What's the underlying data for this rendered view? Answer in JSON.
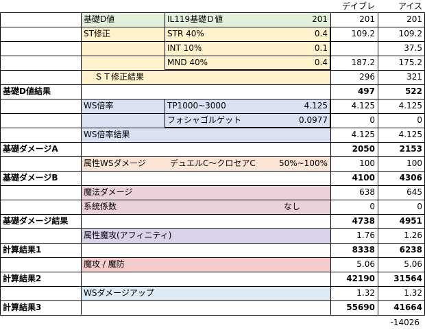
{
  "colors": {
    "green": "#e2efda",
    "yellow": "#fff2cc",
    "blue": "#d9e1f2",
    "orange": "#fce4d6",
    "pink": "#ead1dc",
    "purple": "#d9d2e9",
    "red": "#f4cccc",
    "lightblue": "#ddebf7",
    "border": "#000000",
    "gridline": "#c6c6c6"
  },
  "header": {
    "col_debuff": "デイブレ",
    "col_ice": "アイス"
  },
  "rows": [
    {
      "label": "基礎D値",
      "label2": "IL119基礎Ｄ値",
      "val": "201",
      "debuff": "201",
      "ice": "201"
    },
    {
      "label": "ST修正",
      "label2": "STR 40%",
      "val": "0.4",
      "debuff": "109.2",
      "ice": "109.2"
    },
    {
      "label": "",
      "label2": "INT 10%",
      "val": "0.1",
      "debuff": "",
      "ice": "37.5"
    },
    {
      "label": "",
      "label2": "MND 40%",
      "val": "0.4",
      "debuff": "187.2",
      "ice": "175.2"
    },
    {
      "label": "ＳＴ修正結果",
      "label2": "",
      "val": "",
      "debuff": "296",
      "ice": "321"
    },
    {
      "label": "基礎D値結果",
      "label2": "",
      "val": "",
      "debuff": "497",
      "ice": "522"
    },
    {
      "label": "WS倍率",
      "label2": "TP1000~3000",
      "val": "4.125",
      "debuff": "4.125",
      "ice": "4.125"
    },
    {
      "label": "",
      "label2": "フォシャゴルゲット",
      "val": "0.0977",
      "debuff": "0",
      "ice": "0"
    },
    {
      "label": "WS倍率結果",
      "label2": "",
      "val": "",
      "debuff": "4.125",
      "ice": "4.125"
    },
    {
      "label": "基礎ダメージA",
      "label2": "",
      "val": "",
      "debuff": "2050",
      "ice": "2153"
    },
    {
      "label": "属性WSダメージ",
      "label2": "デュエルC～クロセアC",
      "val": "50%~100%",
      "debuff": "100",
      "ice": "100"
    },
    {
      "label": "基礎ダメージB",
      "label2": "",
      "val": "",
      "debuff": "4100",
      "ice": "4306"
    },
    {
      "label": "魔法ダメージ",
      "label2": "",
      "val": "",
      "debuff": "638",
      "ice": "645"
    },
    {
      "label": "系統係数",
      "label2": "",
      "val": "なし",
      "debuff": "0",
      "ice": "0"
    },
    {
      "label": "基礎ダメージ結果",
      "label2": "",
      "val": "",
      "debuff": "4738",
      "ice": "4951"
    },
    {
      "label": "属性魔攻(アフィニティ)",
      "label2": "",
      "val": "",
      "debuff": "1.76",
      "ice": "1.26"
    },
    {
      "label": "計算結果1",
      "label2": "",
      "val": "",
      "debuff": "8338",
      "ice": "6238"
    },
    {
      "label": "魔攻 / 魔防",
      "label2": "",
      "val": "",
      "debuff": "5.06",
      "ice": "5.06"
    },
    {
      "label": "計算結果2",
      "label2": "",
      "val": "",
      "debuff": "42190",
      "ice": "31564"
    },
    {
      "label": "WSダメージアップ",
      "label2": "",
      "val": "",
      "debuff": "1.32",
      "ice": "1.32"
    },
    {
      "label": "計算結果3",
      "label2": "",
      "val": "",
      "debuff": "55690",
      "ice": "41664"
    }
  ],
  "footer": {
    "diff": "-14026"
  }
}
